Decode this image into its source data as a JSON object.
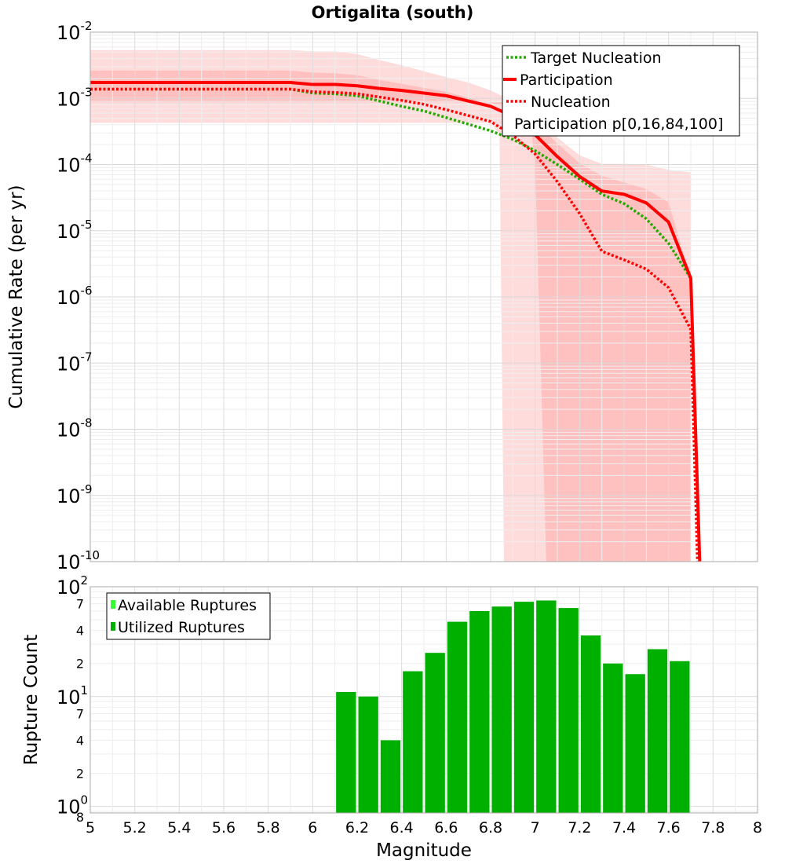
{
  "chart_data": [
    {
      "type": "line",
      "title": "Ortigalita (south)",
      "xlabel": "",
      "ylabel": "Cumulative Rate (per yr)",
      "xlim": [
        5,
        8
      ],
      "ylim_exp": [
        -10,
        -2
      ],
      "y_scale": "log",
      "grid": true,
      "legend_placement": "top-right",
      "y_ticks": [
        {
          "base": "10",
          "exp": "-2",
          "value": -2
        },
        {
          "base": "10",
          "exp": "-3",
          "value": -3
        },
        {
          "base": "10",
          "exp": "-4",
          "value": -4
        },
        {
          "base": "10",
          "exp": "-5",
          "value": -5
        },
        {
          "base": "10",
          "exp": "-6",
          "value": -6
        },
        {
          "base": "10",
          "exp": "-7",
          "value": -7
        },
        {
          "base": "10",
          "exp": "-8",
          "value": -8
        },
        {
          "base": "10",
          "exp": "-9",
          "value": -9
        },
        {
          "base": "10",
          "exp": "-10",
          "value": -10
        }
      ],
      "legend": [
        {
          "label": "Target Nucleation",
          "style": "dotted",
          "color": "#22aa00"
        },
        {
          "label": "Participation",
          "style": "solid",
          "color": "#ff0000"
        },
        {
          "label": "Nucleation",
          "style": "dotted",
          "color": "#ff0000"
        },
        {
          "label": "Participation p[0,16,84,100]",
          "style": "band",
          "color": "#ffc8c8"
        }
      ],
      "series": [
        {
          "name": "Target Nucleation",
          "color": "#22aa00",
          "style": "dotted",
          "x": [
            5.0,
            5.9,
            6.0,
            6.1,
            6.2,
            6.3,
            6.4,
            6.5,
            6.6,
            6.7,
            6.8,
            6.9,
            7.0,
            7.1,
            7.2,
            7.3,
            7.4,
            7.5,
            7.6,
            7.7
          ],
          "log_y": [
            -2.86,
            -2.86,
            -2.92,
            -2.93,
            -2.96,
            -3.04,
            -3.12,
            -3.19,
            -3.29,
            -3.39,
            -3.49,
            -3.62,
            -3.79,
            -4.0,
            -4.22,
            -4.45,
            -4.59,
            -4.82,
            -5.19,
            -5.72
          ]
        },
        {
          "name": "Participation",
          "color": "#ff0000",
          "style": "solid",
          "x": [
            5.0,
            5.9,
            6.0,
            6.1,
            6.2,
            6.3,
            6.4,
            6.5,
            6.6,
            6.7,
            6.8,
            6.9,
            7.0,
            7.1,
            7.2,
            7.3,
            7.4,
            7.5,
            7.6,
            7.7,
            7.74
          ],
          "log_y": [
            -2.76,
            -2.76,
            -2.79,
            -2.79,
            -2.81,
            -2.85,
            -2.88,
            -2.92,
            -2.96,
            -3.04,
            -3.12,
            -3.27,
            -3.55,
            -3.88,
            -4.18,
            -4.4,
            -4.45,
            -4.58,
            -4.87,
            -5.72,
            -10.0
          ]
        },
        {
          "name": "Nucleation",
          "color": "#ff0000",
          "style": "dotted",
          "x": [
            5.0,
            5.9,
            6.0,
            6.1,
            6.2,
            6.3,
            6.4,
            6.5,
            6.6,
            6.7,
            6.8,
            6.9,
            7.0,
            7.1,
            7.2,
            7.3,
            7.4,
            7.5,
            7.6,
            7.7,
            7.73
          ],
          "log_y": [
            -2.86,
            -2.86,
            -2.9,
            -2.91,
            -2.93,
            -2.98,
            -3.03,
            -3.09,
            -3.17,
            -3.26,
            -3.35,
            -3.56,
            -3.84,
            -4.26,
            -4.74,
            -5.31,
            -5.44,
            -5.58,
            -5.86,
            -6.49,
            -10.0
          ]
        }
      ],
      "bands": [
        {
          "name": "p0-p100",
          "color": "#ffdcdc",
          "x": [
            5.0,
            5.9,
            6.0,
            6.1,
            6.2,
            6.3,
            6.4,
            6.5,
            6.6,
            6.7,
            6.8,
            6.85,
            6.9,
            7.0,
            7.1,
            7.2,
            7.3,
            7.4,
            7.5,
            7.6,
            7.7
          ],
          "log_upper": [
            -2.27,
            -2.27,
            -2.29,
            -2.29,
            -2.33,
            -2.42,
            -2.5,
            -2.59,
            -2.68,
            -2.76,
            -2.88,
            -2.96,
            -3.05,
            -3.28,
            -3.59,
            -3.86,
            -3.99,
            -3.99,
            -4.0,
            -4.08,
            -4.12
          ],
          "lower_x": [
            5.0,
            6.8,
            6.84,
            6.86
          ],
          "log_lower": [
            -3.37,
            -3.37,
            -3.55,
            -10.0
          ]
        },
        {
          "name": "p16-p84",
          "color": "#ffc0c0",
          "x": [
            5.0,
            5.9,
            6.0,
            6.1,
            6.2,
            6.3,
            6.4,
            6.5,
            6.6,
            6.7,
            6.8,
            6.9,
            7.0,
            7.1,
            7.2,
            7.3,
            7.4,
            7.5,
            7.6,
            7.7
          ],
          "log_upper": [
            -2.58,
            -2.58,
            -2.61,
            -2.62,
            -2.65,
            -2.72,
            -2.78,
            -2.84,
            -2.9,
            -2.99,
            -3.07,
            -3.15,
            -3.37,
            -3.68,
            -3.98,
            -4.17,
            -4.27,
            -4.37,
            -4.57,
            -5.72
          ],
          "lower_x": [
            5.0,
            6.9,
            6.98,
            7.0,
            7.05
          ],
          "log_lower": [
            -3.06,
            -3.06,
            -3.35,
            -4.0,
            -10.0
          ]
        }
      ]
    },
    {
      "type": "bar",
      "xlabel": "Magnitude",
      "ylabel": "Rupture Count",
      "xlim": [
        5,
        8
      ],
      "y_scale": "log",
      "ylim_exp": [
        -0.06,
        2
      ],
      "grid": true,
      "legend_placement": "top-left",
      "x_ticks": [
        "5",
        "5.2",
        "5.4",
        "5.6",
        "5.8",
        "6",
        "6.2",
        "6.4",
        "6.6",
        "6.8",
        "7",
        "7.2",
        "7.4",
        "7.6",
        "7.8",
        "8"
      ],
      "y_major_ticks": [
        {
          "base": "10",
          "exp": "2",
          "value": 100
        },
        {
          "base": "10",
          "exp": "1",
          "value": 10
        },
        {
          "base": "10",
          "exp": "0",
          "value": 1
        }
      ],
      "y_minor_ticks": [
        {
          "label": "7",
          "value": 70
        },
        {
          "label": "4",
          "value": 40
        },
        {
          "label": "2",
          "value": 20
        },
        {
          "label": "7",
          "value": 7
        },
        {
          "label": "4",
          "value": 4
        },
        {
          "label": "2",
          "value": 2
        },
        {
          "label": "8",
          "value": 0.8
        }
      ],
      "legend": [
        {
          "label": "Available Ruptures",
          "color": "#33ff33"
        },
        {
          "label": "Utilized Ruptures",
          "color": "#00b000"
        }
      ],
      "series": [
        {
          "name": "Utilized Ruptures",
          "color": "#00b000",
          "x": [
            6.15,
            6.25,
            6.35,
            6.45,
            6.55,
            6.65,
            6.75,
            6.85,
            6.95,
            7.05,
            7.15,
            7.25,
            7.35,
            7.45,
            7.55,
            7.65
          ],
          "values": [
            11,
            10,
            4,
            17,
            25,
            48,
            60,
            66,
            73,
            75,
            64,
            36,
            20,
            16,
            27,
            21
          ]
        },
        {
          "name": "Available Ruptures",
          "color": "#33ff33",
          "x": [
            6.15,
            6.25,
            6.35,
            6.45,
            6.55,
            6.65,
            6.75,
            6.85,
            6.95,
            7.05,
            7.15,
            7.25,
            7.35,
            7.45,
            7.55,
            7.65
          ],
          "values": [
            11,
            10,
            4,
            17,
            25,
            48,
            60,
            66,
            73,
            75,
            64,
            36,
            20,
            16,
            27,
            21
          ]
        }
      ]
    }
  ]
}
